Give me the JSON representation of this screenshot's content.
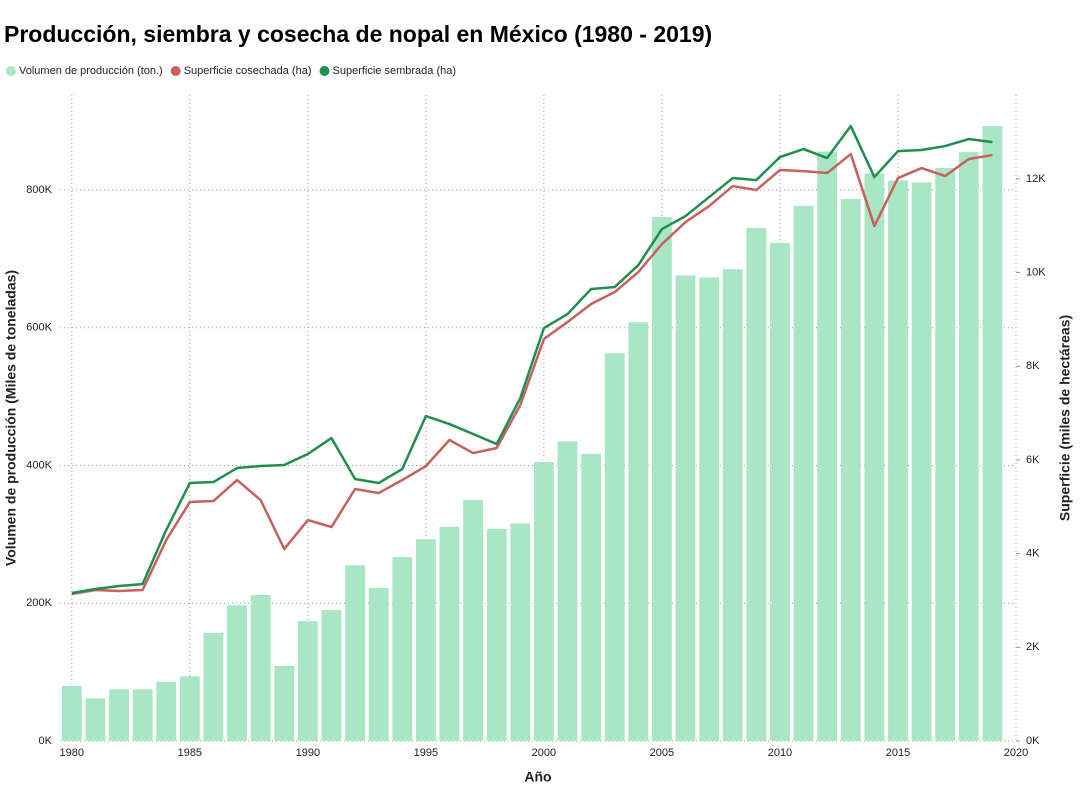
{
  "chart_data": {
    "type": "bar",
    "title": "Producción, siembra y cosecha de nopal en México (1980 - 2019)",
    "x_label": "Año",
    "y_label": "Volumen de producción (Miles de toneladas)",
    "y2_label": "Superficie  (miles de hectáreas)",
    "x": [
      1980,
      1981,
      1982,
      1983,
      1984,
      1985,
      1986,
      1987,
      1988,
      1989,
      1990,
      1991,
      1992,
      1993,
      1994,
      1995,
      1996,
      1997,
      1998,
      1999,
      2000,
      2001,
      2002,
      2003,
      2004,
      2005,
      2006,
      2007,
      2008,
      2009,
      2010,
      2011,
      2012,
      2013,
      2014,
      2015,
      2016,
      2017,
      2018,
      2019
    ],
    "series": [
      {
        "name": "Volumen de producción (ton.)",
        "type": "bar",
        "color": "#a8e6c4",
        "values": [
          80000,
          62000,
          75000,
          75000,
          86000,
          94000,
          157000,
          197000,
          212000,
          109000,
          174000,
          190000,
          255000,
          222000,
          267000,
          293000,
          311000,
          350000,
          308000,
          316000,
          405000,
          435000,
          417000,
          563000,
          608000,
          761000,
          676000,
          673000,
          685000,
          745000,
          723000,
          777000,
          856000,
          787000,
          824000,
          814000,
          811000,
          832000,
          855000,
          893000
        ]
      },
      {
        "name": "Superficie cosechada (ha)",
        "type": "line",
        "axis": "y2",
        "color": "#c8605e",
        "values": [
          3138,
          3223,
          3202,
          3223,
          4290,
          5101,
          5123,
          5571,
          5144,
          4098,
          4717,
          4568,
          5379,
          5293,
          5571,
          5870,
          6425,
          6147,
          6254,
          7172,
          8581,
          8943,
          9328,
          9584,
          10011,
          10608,
          11078,
          11419,
          11846,
          11761,
          12188,
          12166,
          12124,
          12529,
          10992,
          12017,
          12230,
          12060,
          12423,
          12508
        ]
      },
      {
        "name": "Superficie sembrada (ha)",
        "type": "line",
        "axis": "y2",
        "color": "#1f8f4e",
        "values": [
          3159,
          3244,
          3308,
          3351,
          4504,
          5507,
          5528,
          5827,
          5870,
          5891,
          6126,
          6467,
          5592,
          5507,
          5806,
          6937,
          6766,
          6553,
          6339,
          7321,
          8815,
          9114,
          9648,
          9690,
          10160,
          10928,
          11206,
          11611,
          12017,
          11974,
          12465,
          12636,
          12444,
          13127,
          12038,
          12593,
          12615,
          12700,
          12850,
          12785
        ]
      }
    ],
    "xlim": [
      1979.5,
      2020
    ],
    "xticks": [
      1980,
      1985,
      1990,
      1995,
      2000,
      2005,
      2010,
      2015,
      2020
    ],
    "ylim": [
      0,
      938000
    ],
    "yticks": [
      {
        "value": 0,
        "label": "0K"
      },
      {
        "value": 200000,
        "label": "200K"
      },
      {
        "value": 400000,
        "label": "400K"
      },
      {
        "value": 600000,
        "label": "600K"
      },
      {
        "value": 800000,
        "label": "800K"
      }
    ],
    "y2lim": [
      0,
      13790
    ],
    "y2ticks": [
      {
        "value": 0,
        "label": "0K"
      },
      {
        "value": 2000,
        "label": "2K"
      },
      {
        "value": 4000,
        "label": "4K"
      },
      {
        "value": 6000,
        "label": "6K"
      },
      {
        "value": 8000,
        "label": "8K"
      },
      {
        "value": 10000,
        "label": "10K"
      },
      {
        "value": 12000,
        "label": "12K"
      }
    ],
    "grid": true,
    "legend": "top-left"
  }
}
